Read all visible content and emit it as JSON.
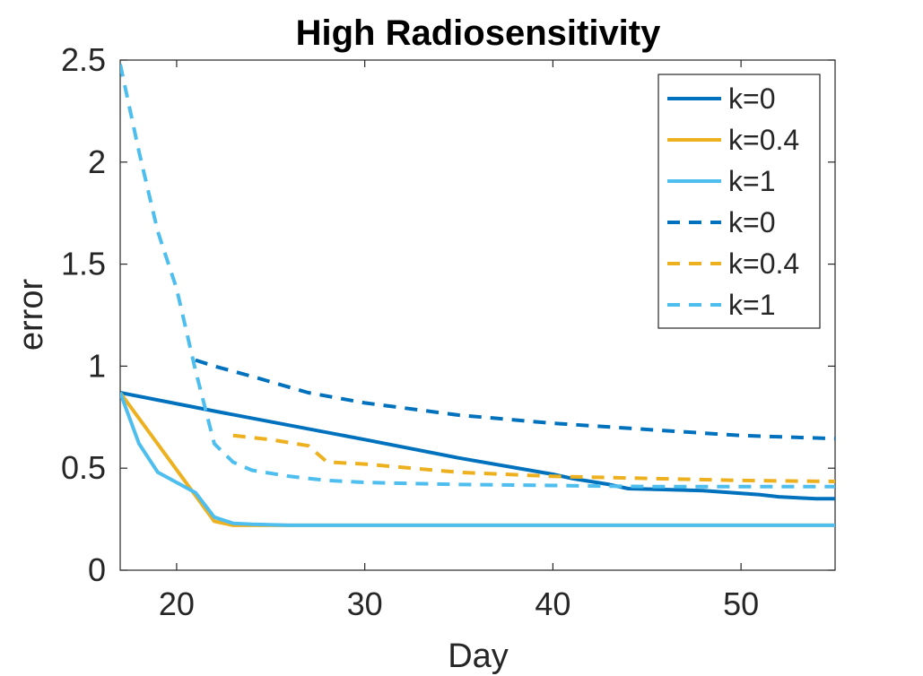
{
  "chart_data": {
    "type": "line",
    "title": "High Radiosensitivity",
    "xlabel": "Day",
    "ylabel": "error",
    "xlim": [
      17,
      55
    ],
    "ylim": [
      0,
      2.5
    ],
    "xticks": [
      20,
      30,
      40,
      50
    ],
    "yticks": [
      0,
      0.5,
      1,
      1.5,
      2,
      2.5
    ],
    "xtick_labels": [
      "20",
      "30",
      "40",
      "50"
    ],
    "ytick_labels": [
      "0",
      "0.5",
      "1",
      "1.5",
      "2",
      "2.5"
    ],
    "grid": false,
    "legend_position": "top-right",
    "series": [
      {
        "name": "k=0",
        "color": "#0072BD",
        "style": "solid",
        "x": [
          17,
          22,
          30,
          35,
          40,
          41,
          43,
          44,
          48,
          51,
          52,
          54,
          55
        ],
        "y": [
          0.87,
          0.78,
          0.64,
          0.55,
          0.47,
          0.45,
          0.42,
          0.4,
          0.39,
          0.37,
          0.36,
          0.35,
          0.35
        ]
      },
      {
        "name": "k=0.4",
        "color": "#EDB120",
        "style": "solid",
        "x": [
          17,
          22,
          23,
          25,
          30,
          40,
          55
        ],
        "y": [
          0.87,
          0.24,
          0.22,
          0.22,
          0.22,
          0.22,
          0.22
        ]
      },
      {
        "name": "k=1",
        "color": "#4DBEEE",
        "style": "solid",
        "x": [
          17,
          18,
          19,
          21,
          22,
          23,
          24,
          26,
          30,
          55
        ],
        "y": [
          0.87,
          0.62,
          0.48,
          0.38,
          0.26,
          0.23,
          0.225,
          0.22,
          0.22,
          0.22
        ]
      },
      {
        "name": "k=0",
        "color": "#0072BD",
        "style": "dashed",
        "x": [
          21,
          22,
          24,
          27,
          30,
          35,
          40,
          45,
          50,
          55
        ],
        "y": [
          1.03,
          1.0,
          0.95,
          0.87,
          0.82,
          0.76,
          0.72,
          0.69,
          0.66,
          0.645
        ]
      },
      {
        "name": "k=0.4",
        "color": "#EDB120",
        "style": "dashed",
        "x": [
          23,
          25,
          27,
          28,
          30,
          35,
          40,
          45,
          50,
          55
        ],
        "y": [
          0.66,
          0.64,
          0.61,
          0.53,
          0.52,
          0.48,
          0.46,
          0.45,
          0.44,
          0.435
        ]
      },
      {
        "name": "k=1",
        "color": "#4DBEEE",
        "style": "dashed",
        "x": [
          17,
          18,
          19,
          20,
          21,
          22,
          23,
          24,
          26,
          28,
          30,
          35,
          40,
          45,
          55
        ],
        "y": [
          2.48,
          2.05,
          1.66,
          1.38,
          0.98,
          0.62,
          0.53,
          0.49,
          0.46,
          0.44,
          0.43,
          0.42,
          0.415,
          0.41,
          0.41
        ]
      }
    ]
  }
}
